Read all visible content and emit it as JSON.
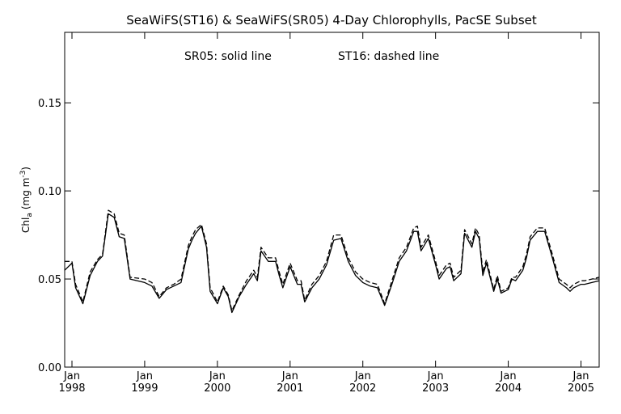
{
  "chart_data": {
    "type": "line",
    "title": "SeaWiFS(ST16) & SeaWiFS(SR05) 4-Day Chlorophylls, PacSE Subset",
    "annotation_left": "SR05: solid line",
    "annotation_right": "ST16: dashed line",
    "ylabel_main": "Chl",
    "ylabel_sub": "a",
    "ylabel_unit": "(mg m",
    "ylabel_sup": "-3",
    "ylabel_close": ")",
    "ylim": [
      0.0,
      0.19
    ],
    "xlim": [
      1997.9,
      2005.25
    ],
    "y_ticks": [
      0.0,
      0.05,
      0.1,
      0.15
    ],
    "y_tick_labels": [
      "0.00",
      "0.05",
      "0.10",
      "0.15"
    ],
    "x_ticks": [
      1998,
      1999,
      2000,
      2001,
      2002,
      2003,
      2004,
      2005
    ],
    "x_tick_labels_top": [
      "Jan",
      "Jan",
      "Jan",
      "Jan",
      "Jan",
      "Jan",
      "Jan",
      "Jan"
    ],
    "x_tick_labels_bottom": [
      "1998",
      "1999",
      "2000",
      "2001",
      "2002",
      "2003",
      "2004",
      "2005"
    ],
    "grid": false,
    "series": [
      {
        "name": "SR05",
        "style": "solid",
        "color": "#000000",
        "x": [
          1997.9,
          1998.0,
          1998.05,
          1998.15,
          1998.25,
          1998.35,
          1998.42,
          1998.5,
          1998.58,
          1998.65,
          1998.72,
          1998.8,
          1999.0,
          1999.1,
          1999.2,
          1999.3,
          1999.4,
          1999.5,
          1999.6,
          1999.65,
          1999.7,
          1999.78,
          1999.85,
          1999.9,
          2000.0,
          2000.08,
          2000.15,
          2000.2,
          2000.3,
          2000.4,
          2000.5,
          2000.55,
          2000.6,
          2000.7,
          2000.8,
          2000.85,
          2000.9,
          2001.0,
          2001.1,
          2001.15,
          2001.2,
          2001.3,
          2001.4,
          2001.5,
          2001.6,
          2001.7,
          2001.8,
          2001.9,
          2002.0,
          2002.1,
          2002.2,
          2002.3,
          2002.4,
          2002.5,
          2002.6,
          2002.7,
          2002.75,
          2002.8,
          2002.9,
          2003.0,
          2003.05,
          2003.15,
          2003.2,
          2003.25,
          2003.35,
          2003.4,
          2003.5,
          2003.55,
          2003.6,
          2003.65,
          2003.7,
          2003.8,
          2003.85,
          2003.9,
          2004.0,
          2004.05,
          2004.1,
          2004.2,
          2004.25,
          2004.3,
          2004.4,
          2004.5,
          2004.6,
          2004.7,
          2004.8,
          2004.85,
          2004.9,
          2005.0,
          2005.05,
          2005.15,
          2005.25
        ],
        "values": [
          0.055,
          0.059,
          0.045,
          0.036,
          0.052,
          0.06,
          0.063,
          0.087,
          0.085,
          0.074,
          0.073,
          0.05,
          0.048,
          0.046,
          0.039,
          0.044,
          0.046,
          0.048,
          0.067,
          0.072,
          0.076,
          0.08,
          0.068,
          0.043,
          0.036,
          0.045,
          0.04,
          0.031,
          0.04,
          0.047,
          0.053,
          0.049,
          0.066,
          0.06,
          0.06,
          0.052,
          0.045,
          0.057,
          0.047,
          0.047,
          0.037,
          0.045,
          0.05,
          0.058,
          0.072,
          0.073,
          0.06,
          0.052,
          0.048,
          0.046,
          0.045,
          0.035,
          0.047,
          0.06,
          0.066,
          0.077,
          0.077,
          0.066,
          0.073,
          0.058,
          0.05,
          0.056,
          0.057,
          0.049,
          0.053,
          0.076,
          0.068,
          0.077,
          0.073,
          0.052,
          0.059,
          0.043,
          0.05,
          0.042,
          0.044,
          0.05,
          0.049,
          0.055,
          0.062,
          0.072,
          0.077,
          0.077,
          0.063,
          0.048,
          0.045,
          0.043,
          0.045,
          0.047,
          0.047,
          0.048,
          0.049
        ]
      },
      {
        "name": "ST16",
        "style": "dashed",
        "color": "#000000",
        "x": [
          1997.9,
          1998.0,
          1998.05,
          1998.15,
          1998.25,
          1998.35,
          1998.42,
          1998.5,
          1998.58,
          1998.65,
          1998.72,
          1998.8,
          1999.0,
          1999.1,
          1999.2,
          1999.3,
          1999.4,
          1999.5,
          1999.6,
          1999.65,
          1999.7,
          1999.78,
          1999.85,
          1999.9,
          2000.0,
          2000.08,
          2000.15,
          2000.2,
          2000.3,
          2000.4,
          2000.5,
          2000.55,
          2000.6,
          2000.7,
          2000.8,
          2000.85,
          2000.9,
          2001.0,
          2001.1,
          2001.15,
          2001.2,
          2001.3,
          2001.4,
          2001.5,
          2001.6,
          2001.7,
          2001.8,
          2001.9,
          2002.0,
          2002.1,
          2002.2,
          2002.3,
          2002.4,
          2002.5,
          2002.6,
          2002.7,
          2002.75,
          2002.8,
          2002.9,
          2003.0,
          2003.05,
          2003.15,
          2003.2,
          2003.25,
          2003.35,
          2003.4,
          2003.5,
          2003.55,
          2003.6,
          2003.65,
          2003.7,
          2003.8,
          2003.85,
          2003.9,
          2004.0,
          2004.05,
          2004.1,
          2004.2,
          2004.25,
          2004.3,
          2004.4,
          2004.5,
          2004.6,
          2004.7,
          2004.8,
          2004.85,
          2004.9,
          2005.0,
          2005.05,
          2005.15,
          2005.25
        ],
        "values": [
          0.06,
          0.06,
          0.047,
          0.037,
          0.054,
          0.061,
          0.064,
          0.089,
          0.087,
          0.076,
          0.075,
          0.051,
          0.05,
          0.048,
          0.04,
          0.045,
          0.047,
          0.05,
          0.069,
          0.074,
          0.078,
          0.081,
          0.07,
          0.045,
          0.037,
          0.046,
          0.041,
          0.032,
          0.041,
          0.049,
          0.055,
          0.051,
          0.068,
          0.062,
          0.062,
          0.054,
          0.047,
          0.059,
          0.049,
          0.049,
          0.038,
          0.047,
          0.052,
          0.06,
          0.075,
          0.075,
          0.062,
          0.054,
          0.05,
          0.048,
          0.047,
          0.036,
          0.049,
          0.062,
          0.068,
          0.079,
          0.08,
          0.068,
          0.075,
          0.06,
          0.052,
          0.058,
          0.059,
          0.051,
          0.055,
          0.078,
          0.07,
          0.079,
          0.075,
          0.054,
          0.061,
          0.044,
          0.052,
          0.043,
          0.045,
          0.051,
          0.051,
          0.057,
          0.064,
          0.074,
          0.079,
          0.079,
          0.065,
          0.05,
          0.047,
          0.045,
          0.047,
          0.049,
          0.049,
          0.05,
          0.051
        ]
      }
    ]
  }
}
